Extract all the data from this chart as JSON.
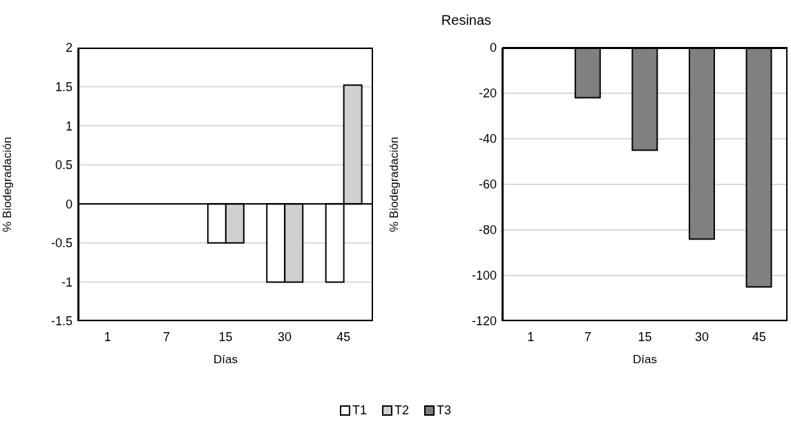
{
  "chart_data": [
    {
      "type": "bar",
      "ylabel": "% Biodegradación",
      "xlabel": "Días",
      "categories": [
        "1",
        "7",
        "15",
        "30",
        "45"
      ],
      "series": [
        {
          "name": "T1",
          "color": "#ffffff",
          "values": [
            null,
            null,
            -0.5,
            -1,
            -1
          ]
        },
        {
          "name": "T2",
          "color": "#d0d0d0",
          "values": [
            null,
            null,
            -0.5,
            -1,
            1.52
          ]
        }
      ],
      "ylim": [
        -1.5,
        2
      ],
      "yticks": [
        -1.5,
        -1,
        -0.5,
        0,
        0.5,
        1,
        1.5,
        2
      ],
      "grid": "y",
      "legend": "bottom"
    },
    {
      "type": "bar",
      "title": "Resinas",
      "ylabel": "% Biodegradación",
      "xlabel": "Días",
      "categories": [
        "1",
        "7",
        "15",
        "30",
        "45"
      ],
      "series": [
        {
          "name": "T3",
          "color": "#808080",
          "values": [
            null,
            -22,
            -45,
            -84,
            -105
          ]
        }
      ],
      "ylim": [
        -120,
        0
      ],
      "yticks": [
        -120,
        -100,
        -80,
        -60,
        -40,
        -20,
        0
      ],
      "grid": "y",
      "legend": "bottom"
    }
  ]
}
